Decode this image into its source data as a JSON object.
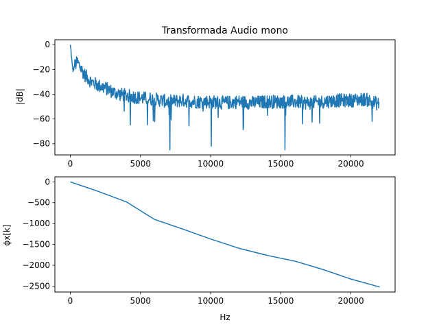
{
  "chart_data": [
    {
      "type": "line",
      "title": "Transformada Audio mono",
      "xlabel": "",
      "ylabel": "|dB|",
      "xlim": [
        -1100,
        23150
      ],
      "ylim": [
        -89,
        4
      ],
      "xticks": [
        0,
        5000,
        10000,
        15000,
        20000
      ],
      "xtick_labels": [
        "0",
        "5000",
        "10000",
        "15000",
        "20000"
      ],
      "yticks": [
        0,
        -20,
        -40,
        -60,
        -80
      ],
      "ytick_labels": [
        "0",
        "−20",
        "−40",
        "−60",
        "−80"
      ],
      "grid": false,
      "series": [
        {
          "color": "#1f77b4",
          "x": [
            0,
            50,
            100,
            150,
            200,
            300,
            500,
            700,
            1000,
            1500,
            2000,
            2500,
            3000,
            3500,
            4000,
            5000,
            6000,
            7000,
            7100,
            8000,
            9000,
            10000,
            10050,
            11000,
            12000,
            13000,
            14000,
            15000,
            15300,
            16000,
            17000,
            18000,
            19000,
            20000,
            21000,
            22000
          ],
          "values": [
            0,
            -5,
            -12,
            -18,
            -21,
            -17,
            -14,
            -18,
            -24,
            -30,
            -33,
            -35,
            -38,
            -40,
            -41,
            -43,
            -44,
            -46,
            -85,
            -45,
            -46,
            -46,
            -82,
            -47,
            -46,
            -47,
            -46,
            -46,
            -85,
            -46,
            -47,
            -46,
            -45,
            -45,
            -44,
            -48
          ],
          "spread": 11,
          "noise_points": 900
        }
      ]
    },
    {
      "type": "line",
      "title": "",
      "xlabel": "Hz",
      "ylabel": "ϕx[k]",
      "xlim": [
        -1100,
        23150
      ],
      "ylim": [
        -2640,
        120
      ],
      "xticks": [
        0,
        5000,
        10000,
        15000,
        20000
      ],
      "xtick_labels": [
        "0",
        "5000",
        "10000",
        "15000",
        "20000"
      ],
      "yticks": [
        0,
        -500,
        -1000,
        -1500,
        -2000,
        -2500
      ],
      "ytick_labels": [
        "0",
        "−500",
        "−1000",
        "−1500",
        "−2000",
        "−2500"
      ],
      "grid": false,
      "series": [
        {
          "color": "#1f77b4",
          "x": [
            0,
            2000,
            4000,
            6000,
            8000,
            10000,
            12000,
            14000,
            16000,
            18000,
            20000,
            22050
          ],
          "values": [
            0,
            -230,
            -480,
            -900,
            -1130,
            -1370,
            -1590,
            -1760,
            -1900,
            -2100,
            -2330,
            -2520
          ]
        }
      ]
    }
  ]
}
